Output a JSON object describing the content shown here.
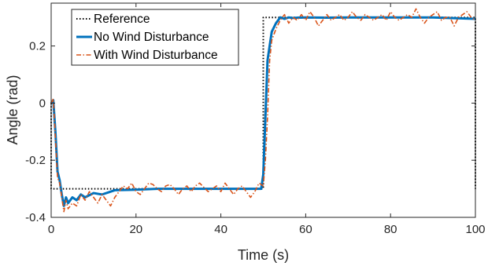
{
  "chart_data": {
    "type": "line",
    "xlabel": "Time (s)",
    "ylabel": "Angle (rad)",
    "xlim": [
      0,
      100
    ],
    "ylim": [
      -0.4,
      0.35
    ],
    "xticks": [
      0,
      20,
      40,
      60,
      80,
      100
    ],
    "xtick_labels": [
      "0",
      "20",
      "40",
      "60",
      "80",
      "100"
    ],
    "yticks": [
      -0.4,
      -0.2,
      0,
      0.2
    ],
    "ytick_labels": [
      "-0.4",
      "-0.2",
      "0",
      "0.2"
    ],
    "grid": false,
    "legend_position": "top-left",
    "series": [
      {
        "name": "Reference",
        "color": "#000000",
        "style": "dotted",
        "x": [
          0,
          0,
          50,
          50,
          100,
          100
        ],
        "y": [
          0,
          -0.3,
          -0.3,
          0.3,
          0.3,
          -0.3
        ]
      },
      {
        "name": "No Wind Disturbance",
        "color": "#0072BD",
        "style": "solid",
        "x": [
          0,
          0.5,
          1,
          1.5,
          2,
          2.5,
          3,
          3.5,
          4,
          5,
          6,
          7,
          8,
          10,
          12,
          15,
          20,
          25,
          30,
          40,
          49.5,
          50,
          50.5,
          51,
          51.5,
          52,
          53,
          54,
          55,
          56,
          57,
          58,
          60,
          65,
          70,
          80,
          90,
          100
        ],
        "y": [
          0,
          0.01,
          -0.1,
          -0.24,
          -0.27,
          -0.32,
          -0.36,
          -0.33,
          -0.35,
          -0.33,
          -0.34,
          -0.32,
          -0.33,
          -0.315,
          -0.32,
          -0.305,
          -0.303,
          -0.3,
          -0.3,
          -0.3,
          -0.3,
          -0.25,
          -0.05,
          0.15,
          0.2,
          0.25,
          0.28,
          0.3,
          0.295,
          0.3,
          0.298,
          0.299,
          0.3,
          0.299,
          0.3,
          0.3,
          0.3,
          0.295
        ]
      },
      {
        "name": "With Wind Disturbance",
        "color": "#D95319",
        "style": "dashdot",
        "x": [
          0,
          0.5,
          1,
          1.5,
          2,
          2.5,
          3,
          3.5,
          4,
          5,
          6,
          7,
          8,
          9,
          10,
          11,
          12,
          13,
          14,
          15,
          16,
          17,
          18,
          19,
          20,
          21,
          22,
          23,
          24,
          25,
          26,
          27,
          28,
          29,
          30,
          31,
          32,
          33,
          34,
          35,
          36,
          37,
          38,
          39,
          40,
          41,
          42,
          43,
          44,
          45,
          46,
          47,
          48,
          49,
          50,
          50.5,
          51,
          51.5,
          52,
          53,
          54,
          55,
          56,
          57,
          58,
          59,
          60,
          61,
          62,
          63,
          64,
          65,
          66,
          67,
          68,
          69,
          70,
          71,
          72,
          73,
          74,
          75,
          76,
          77,
          78,
          79,
          80,
          81,
          82,
          83,
          84,
          85,
          86,
          87,
          88,
          89,
          90,
          91,
          92,
          93,
          94,
          95,
          96,
          97,
          98,
          99,
          100
        ],
        "y": [
          0,
          0.015,
          -0.12,
          -0.26,
          -0.28,
          -0.33,
          -0.38,
          -0.34,
          -0.37,
          -0.35,
          -0.36,
          -0.32,
          -0.34,
          -0.31,
          -0.33,
          -0.35,
          -0.32,
          -0.34,
          -0.36,
          -0.33,
          -0.31,
          -0.29,
          -0.3,
          -0.28,
          -0.31,
          -0.32,
          -0.3,
          -0.28,
          -0.285,
          -0.3,
          -0.31,
          -0.29,
          -0.285,
          -0.3,
          -0.32,
          -0.3,
          -0.29,
          -0.31,
          -0.29,
          -0.28,
          -0.295,
          -0.31,
          -0.3,
          -0.29,
          -0.31,
          -0.28,
          -0.3,
          -0.32,
          -0.3,
          -0.29,
          -0.31,
          -0.33,
          -0.31,
          -0.28,
          -0.29,
          -0.2,
          -0.05,
          0.15,
          0.22,
          0.26,
          0.29,
          0.31,
          0.28,
          0.3,
          0.29,
          0.31,
          0.29,
          0.32,
          0.3,
          0.27,
          0.29,
          0.31,
          0.29,
          0.3,
          0.31,
          0.29,
          0.3,
          0.32,
          0.3,
          0.29,
          0.31,
          0.3,
          0.29,
          0.3,
          0.31,
          0.29,
          0.32,
          0.3,
          0.29,
          0.3,
          0.31,
          0.3,
          0.33,
          0.3,
          0.28,
          0.3,
          0.31,
          0.32,
          0.29,
          0.3,
          0.3,
          0.27,
          0.3,
          0.31,
          0.32,
          0.3,
          0.29
        ]
      }
    ]
  }
}
